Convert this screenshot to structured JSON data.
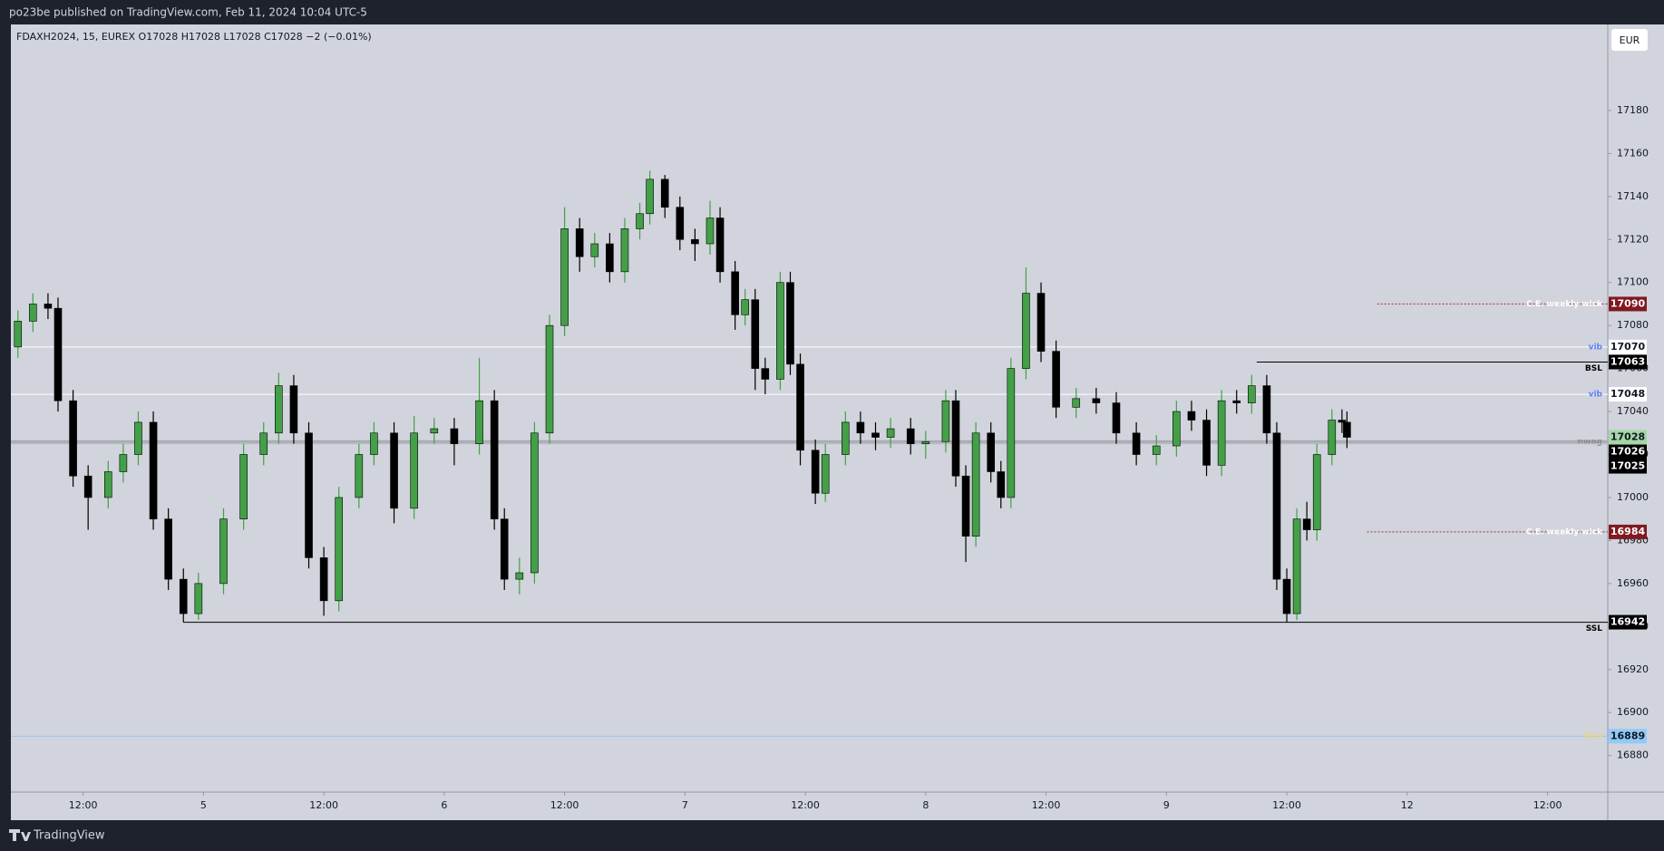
{
  "chart_data": {
    "type": "candlestick",
    "header": "po23be published on TradingView.com, Feb 11, 2024 10:04 UTC-5",
    "legend": "FDAXH2024, 15, EUREX  O17028  H17028  L17028  C17028  −2 (−0.01%)",
    "currency": "EUR",
    "brand": "TradingView",
    "up_color": "#43a047",
    "down_color": "#000000",
    "x": [
      -18.5,
      -17,
      -15.5,
      -14.5,
      -13,
      -11.5,
      -9.5,
      -8,
      -6.5,
      -5,
      -3.5,
      -2,
      -0.5,
      2,
      4,
      6,
      7.5,
      9,
      10.5,
      12,
      13.5,
      15.5,
      17,
      19,
      21,
      23,
      25,
      27.5,
      29,
      30,
      31.5,
      33,
      34.5,
      36,
      37.5,
      39,
      40.5,
      42,
      43.5,
      44.5,
      46,
      47.5,
      49,
      50.5,
      51.5,
      53,
      54,
      55,
      56,
      57.5,
      58.5,
      59.5,
      61,
      62,
      64,
      65.5,
      67,
      68.5,
      70.5,
      72,
      74,
      75,
      76,
      77,
      78.5,
      79.5,
      80.5,
      82,
      83.5,
      85,
      87,
      89,
      91,
      93,
      95,
      97,
      98.5,
      100,
      101.5,
      103,
      104.5,
      106,
      107,
      108,
      109,
      110,
      111,
      112.5,
      113.5,
      114
    ],
    "open": [
      17070,
      17082,
      17090,
      17088,
      17045,
      17010,
      17000,
      17012,
      17020,
      17035,
      16990,
      16962,
      16946,
      16960,
      16990,
      17020,
      17030,
      17052,
      17030,
      16972,
      16952,
      17000,
      17020,
      17030,
      16995,
      17030,
      17032,
      17025,
      17045,
      16990,
      16962,
      16965,
      17030,
      17080,
      17125,
      17112,
      17118,
      17105,
      17125,
      17132,
      17148,
      17135,
      17120,
      17118,
      17130,
      17105,
      17085,
      17092,
      17060,
      17055,
      17100,
      17062,
      17022,
      17002,
      17020,
      17035,
      17030,
      17028,
      17032,
      17025,
      17026,
      17045,
      17010,
      16982,
      17030,
      17012,
      17000,
      17060,
      17095,
      17068,
      17042,
      17046,
      17044,
      17030,
      17020,
      17024,
      17040,
      17036,
      17015,
      17045,
      17044,
      17052,
      17030,
      16962,
      16946,
      16990,
      16985,
      17020,
      17036,
      17035
    ],
    "high": [
      17087,
      17095,
      17095,
      17093,
      17050,
      17015,
      17017,
      17025,
      17040,
      17040,
      16995,
      16967,
      16965,
      16995,
      17025,
      17035,
      17058,
      17057,
      17035,
      16977,
      17005,
      17025,
      17035,
      17035,
      17038,
      17037,
      17037,
      17065,
      17050,
      16995,
      16972,
      17035,
      17085,
      17135,
      17130,
      17123,
      17123,
      17130,
      17137,
      17152,
      17150,
      17140,
      17125,
      17138,
      17135,
      17110,
      17097,
      17097,
      17065,
      17105,
      17105,
      17067,
      17027,
      17025,
      17040,
      17040,
      17035,
      17037,
      17037,
      17031,
      17050,
      17050,
      17015,
      17035,
      17035,
      17017,
      17065,
      17107,
      17100,
      17073,
      17051,
      17051,
      17049,
      17035,
      17029,
      17045,
      17045,
      17041,
      17050,
      17050,
      17057,
      17057,
      17035,
      16967,
      16995,
      16998,
      17025,
      17041,
      17041,
      17040
    ],
    "low": [
      17065,
      17077,
      17083,
      17040,
      17005,
      16985,
      16995,
      17007,
      17015,
      16985,
      16957,
      16942,
      16943,
      16955,
      16985,
      17015,
      17025,
      17025,
      16967,
      16945,
      16947,
      16995,
      17015,
      16988,
      16990,
      17025,
      17015,
      17020,
      16985,
      16957,
      16955,
      16960,
      17025,
      17075,
      17105,
      17107,
      17100,
      17100,
      17120,
      17127,
      17130,
      17115,
      17110,
      17113,
      17100,
      17078,
      17080,
      17050,
      17048,
      17050,
      17057,
      17015,
      16997,
      16998,
      17015,
      17025,
      17022,
      17023,
      17020,
      17018,
      17021,
      17005,
      16970,
      16977,
      17007,
      16995,
      16995,
      17055,
      17063,
      17037,
      17037,
      17039,
      17025,
      17015,
      17015,
      17019,
      17031,
      17010,
      17010,
      17039,
      17039,
      17025,
      16957,
      16942,
      16943,
      16980,
      16980,
      17015,
      17030,
      17023
    ],
    "close": [
      17082,
      17090,
      17088,
      17045,
      17010,
      17000,
      17012,
      17020,
      17035,
      16990,
      16962,
      16946,
      16960,
      16990,
      17020,
      17030,
      17052,
      17030,
      16972,
      16952,
      17000,
      17020,
      17030,
      16995,
      17030,
      17032,
      17025,
      17045,
      16990,
      16962,
      16965,
      17030,
      17080,
      17125,
      17112,
      17118,
      17105,
      17125,
      17132,
      17148,
      17135,
      17120,
      17118,
      17130,
      17105,
      17085,
      17092,
      17060,
      17055,
      17100,
      17062,
      17022,
      17002,
      17020,
      17035,
      17030,
      17028,
      17032,
      17025,
      17026,
      17045,
      17010,
      16982,
      17030,
      17012,
      17000,
      17060,
      17095,
      17068,
      17042,
      17046,
      17044,
      17030,
      17020,
      17024,
      17040,
      17036,
      17015,
      17045,
      17044,
      17052,
      17030,
      16962,
      16946,
      16990,
      16985,
      17020,
      17036,
      17035,
      17028
    ],
    "xlim": [
      -19.2,
      140
    ],
    "xticks": [
      {
        "value": -12,
        "label": "12:00"
      },
      {
        "value": 0,
        "label": "5"
      },
      {
        "value": 12,
        "label": "12:00"
      },
      {
        "value": 24,
        "label": "6"
      },
      {
        "value": 36,
        "label": "12:00"
      },
      {
        "value": 48,
        "label": "7"
      },
      {
        "value": 60,
        "label": "12:00"
      },
      {
        "value": 72,
        "label": "8"
      },
      {
        "value": 84,
        "label": "12:00"
      },
      {
        "value": 96,
        "label": "9"
      },
      {
        "value": 108,
        "label": "12:00"
      },
      {
        "value": 120,
        "label": "12"
      },
      {
        "value": 134,
        "label": "12:00"
      }
    ],
    "ylim": [
      16863,
      17220
    ],
    "yticks": [
      16880,
      16900,
      16920,
      16940,
      16960,
      16980,
      17000,
      17020,
      17040,
      17060,
      17080,
      17100,
      17120,
      17140,
      17160,
      17180
    ],
    "last_price": 17028,
    "last_price_color": "#a5d6a7",
    "levels": [
      {
        "value": 17090,
        "label": "C.E. weekly wick",
        "color": "#a03040",
        "style": "dotted",
        "from": 117,
        "badge_color": "#801922",
        "label_color": "#ffffff"
      },
      {
        "value": 17070,
        "label": "vib",
        "color": "#ffffff",
        "style": "solid",
        "badge_color": "#ffffff",
        "label_color": "#5c7cfa"
      },
      {
        "value": 17063,
        "label": "BSL",
        "color": "#000000",
        "style": "solid",
        "from": 105,
        "badge_color": "#000000",
        "label_color": "#000000"
      },
      {
        "value": 17048,
        "label": "vib",
        "color": "#ffffff",
        "style": "solid",
        "badge_color": "#ffffff",
        "label_color": "#5c7cfa"
      },
      {
        "value": 17026,
        "label": "nwog",
        "color": "#a9abb3",
        "style": "thick",
        "badge_color": "#000000",
        "label_color": "#8a8c94"
      },
      {
        "value": 17025,
        "color": "#b5b7bf",
        "style": "solid",
        "badge_color": "#000000"
      },
      {
        "value": 16984,
        "label": "C.E. weekly wick",
        "color": "#a03040",
        "style": "dotted",
        "from": 116,
        "badge_color": "#801922",
        "label_color": "#ffffff"
      },
      {
        "value": 16942,
        "label": "SSL",
        "color": "#000000",
        "style": "solid",
        "from": -2,
        "badge_color": "#000000",
        "label_color": "#000000"
      },
      {
        "value": 16889,
        "label": "BISI",
        "color": "#90caf9",
        "style": "solid",
        "badge_color": "#90caf9",
        "label_color": "#e6d48a"
      }
    ]
  }
}
